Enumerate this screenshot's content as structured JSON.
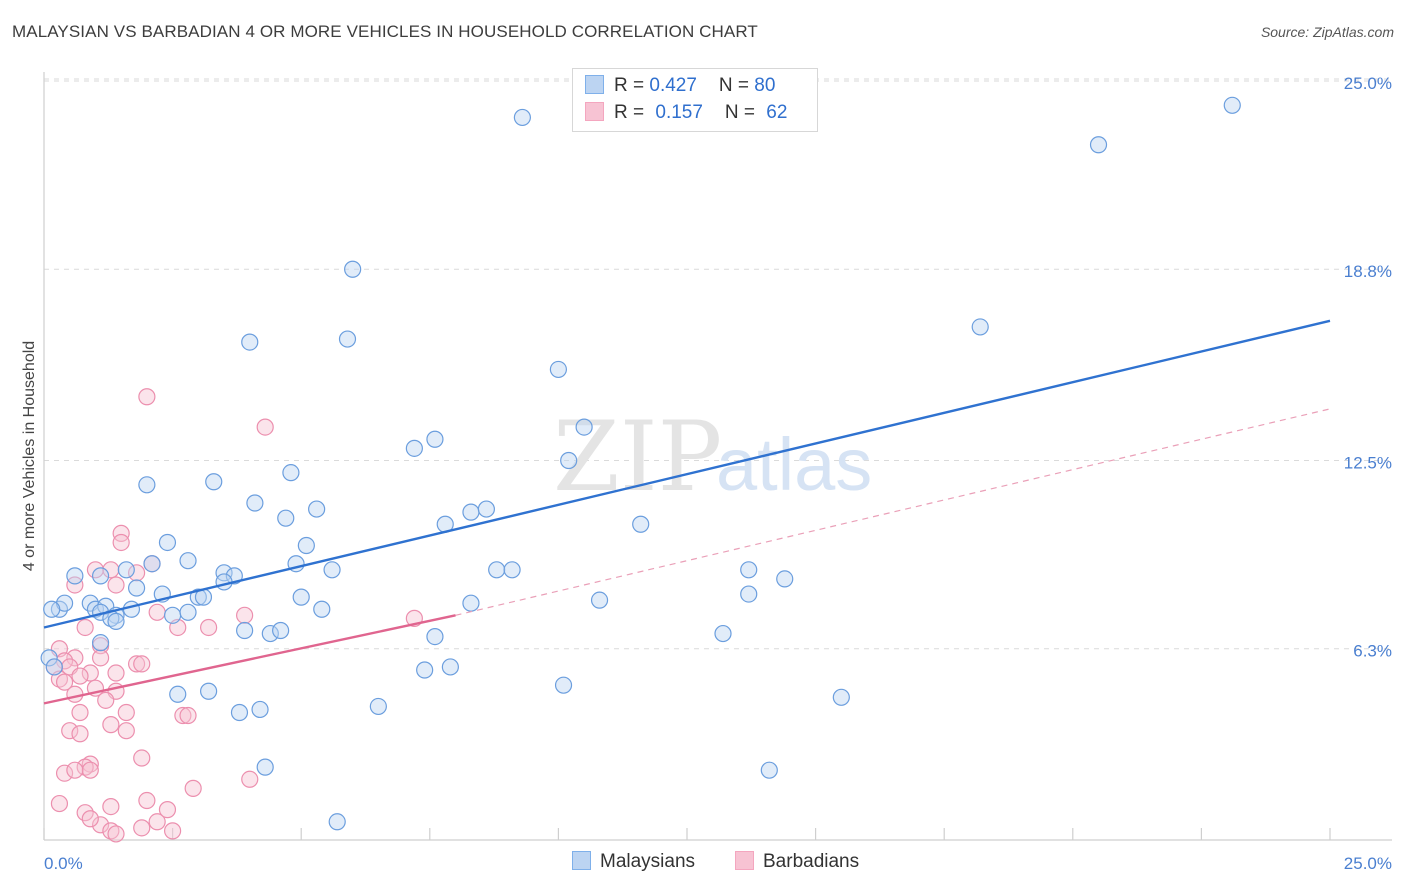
{
  "title": "MALAYSIAN VS BARBADIAN 4 OR MORE VEHICLES IN HOUSEHOLD CORRELATION CHART",
  "source": "Source: ZipAtlas.com",
  "watermark": {
    "zip": "ZIP",
    "atlas": "atlas"
  },
  "legend": {
    "rows": [
      {
        "r_label": "R = ",
        "r_value": "0.427",
        "n_label": "N = ",
        "n_value": "80",
        "color": "#7fb0ea"
      },
      {
        "r_label": "R = ",
        "r_value": "0.157",
        "n_label": "N = ",
        "n_value": "62",
        "color": "#f4a6bf"
      }
    ]
  },
  "bottom_legend": {
    "series1": "Malaysians",
    "series2": "Barbadians"
  },
  "colors": {
    "blue": "#2f72d0",
    "blue_fill": "#bcd4f2",
    "pink": "#e0658f",
    "pink_fill": "#f7c3d3",
    "tick": "#4a7fd0"
  },
  "chart_data": {
    "type": "scatter",
    "title": "MALAYSIAN VS BARBADIAN 4 OR MORE VEHICLES IN HOUSEHOLD CORRELATION CHART",
    "xlabel": "",
    "ylabel": "4 or more Vehicles in Household",
    "xlim": [
      0,
      25
    ],
    "ylim": [
      0,
      25
    ],
    "x_tick_labels": [
      "0.0%",
      "25.0%"
    ],
    "y_tick_labels": [
      "6.3%",
      "12.5%",
      "18.8%",
      "25.0%"
    ],
    "y_ticks": [
      6.3,
      12.5,
      18.8,
      25.0
    ],
    "series": [
      {
        "name": "Malaysians",
        "r": 0.427,
        "n": 80,
        "trend": {
          "x": [
            0,
            25
          ],
          "y": [
            7.0,
            17.1
          ],
          "style": "solid"
        },
        "points": [
          [
            9.3,
            23.8
          ],
          [
            23.1,
            24.2
          ],
          [
            20.5,
            22.9
          ],
          [
            6.0,
            18.8
          ],
          [
            18.2,
            16.9
          ],
          [
            4.0,
            16.4
          ],
          [
            5.9,
            16.5
          ],
          [
            10.0,
            15.5
          ],
          [
            10.5,
            13.6
          ],
          [
            7.2,
            12.9
          ],
          [
            7.6,
            13.2
          ],
          [
            10.2,
            12.5
          ],
          [
            4.8,
            12.1
          ],
          [
            3.3,
            11.8
          ],
          [
            2.0,
            11.7
          ],
          [
            4.1,
            11.1
          ],
          [
            4.7,
            10.6
          ],
          [
            5.3,
            10.9
          ],
          [
            8.3,
            10.8
          ],
          [
            8.6,
            10.9
          ],
          [
            7.8,
            10.4
          ],
          [
            11.6,
            10.4
          ],
          [
            2.4,
            9.8
          ],
          [
            5.1,
            9.7
          ],
          [
            1.6,
            8.9
          ],
          [
            2.1,
            9.1
          ],
          [
            2.8,
            9.2
          ],
          [
            4.9,
            9.1
          ],
          [
            5.6,
            8.9
          ],
          [
            3.5,
            8.8
          ],
          [
            8.8,
            8.9
          ],
          [
            9.1,
            8.9
          ],
          [
            13.7,
            8.9
          ],
          [
            1.1,
            8.7
          ],
          [
            3.7,
            8.7
          ],
          [
            14.4,
            8.6
          ],
          [
            3.5,
            8.5
          ],
          [
            0.6,
            8.7
          ],
          [
            1.8,
            8.3
          ],
          [
            2.3,
            8.1
          ],
          [
            3.0,
            8.0
          ],
          [
            3.1,
            8.0
          ],
          [
            5.0,
            8.0
          ],
          [
            8.3,
            7.8
          ],
          [
            10.8,
            7.9
          ],
          [
            13.7,
            8.1
          ],
          [
            0.9,
            7.8
          ],
          [
            1.0,
            7.6
          ],
          [
            1.2,
            7.7
          ],
          [
            1.7,
            7.6
          ],
          [
            1.4,
            7.4
          ],
          [
            2.5,
            7.4
          ],
          [
            2.8,
            7.5
          ],
          [
            5.4,
            7.6
          ],
          [
            0.3,
            7.6
          ],
          [
            0.4,
            7.8
          ],
          [
            1.1,
            7.5
          ],
          [
            1.3,
            7.3
          ],
          [
            1.4,
            7.2
          ],
          [
            3.9,
            6.9
          ],
          [
            4.4,
            6.8
          ],
          [
            4.6,
            6.9
          ],
          [
            7.6,
            6.7
          ],
          [
            13.2,
            6.8
          ],
          [
            1.1,
            6.5
          ],
          [
            7.4,
            5.6
          ],
          [
            7.9,
            5.7
          ],
          [
            10.1,
            5.1
          ],
          [
            15.5,
            4.7
          ],
          [
            2.6,
            4.8
          ],
          [
            3.2,
            4.9
          ],
          [
            3.8,
            4.2
          ],
          [
            4.2,
            4.3
          ],
          [
            6.5,
            4.4
          ],
          [
            4.3,
            2.4
          ],
          [
            14.1,
            2.3
          ],
          [
            5.7,
            0.6
          ],
          [
            0.1,
            6.0
          ],
          [
            0.2,
            5.7
          ],
          [
            0.15,
            7.6
          ]
        ]
      },
      {
        "name": "Barbadians",
        "r": 0.157,
        "n": 62,
        "trend": {
          "x": [
            0,
            8.0
          ],
          "y": [
            4.5,
            7.4
          ],
          "dashed_extension": {
            "x": [
              8.0,
              25
            ],
            "y": [
              7.4,
              14.2
            ]
          },
          "style": "solid"
        },
        "points": [
          [
            2.0,
            14.6
          ],
          [
            4.3,
            13.6
          ],
          [
            1.5,
            10.1
          ],
          [
            1.5,
            9.8
          ],
          [
            2.1,
            9.1
          ],
          [
            1.0,
            8.9
          ],
          [
            1.3,
            8.9
          ],
          [
            1.8,
            8.8
          ],
          [
            1.4,
            8.4
          ],
          [
            0.6,
            8.4
          ],
          [
            2.2,
            7.5
          ],
          [
            3.9,
            7.4
          ],
          [
            7.2,
            7.3
          ],
          [
            0.8,
            7.0
          ],
          [
            2.6,
            7.0
          ],
          [
            3.2,
            7.0
          ],
          [
            1.1,
            6.4
          ],
          [
            0.3,
            6.3
          ],
          [
            1.1,
            6.0
          ],
          [
            0.6,
            6.0
          ],
          [
            0.4,
            5.9
          ],
          [
            0.5,
            5.7
          ],
          [
            0.2,
            5.7
          ],
          [
            1.4,
            5.5
          ],
          [
            1.8,
            5.8
          ],
          [
            1.9,
            5.8
          ],
          [
            0.9,
            5.5
          ],
          [
            0.7,
            5.4
          ],
          [
            0.3,
            5.3
          ],
          [
            0.4,
            5.2
          ],
          [
            1.0,
            5.0
          ],
          [
            1.4,
            4.9
          ],
          [
            0.6,
            4.8
          ],
          [
            1.2,
            4.6
          ],
          [
            2.7,
            4.1
          ],
          [
            2.8,
            4.1
          ],
          [
            1.6,
            4.2
          ],
          [
            0.7,
            4.2
          ],
          [
            1.3,
            3.8
          ],
          [
            1.6,
            3.6
          ],
          [
            0.5,
            3.6
          ],
          [
            0.7,
            3.5
          ],
          [
            1.9,
            2.7
          ],
          [
            0.9,
            2.5
          ],
          [
            0.8,
            2.4
          ],
          [
            0.9,
            2.3
          ],
          [
            0.4,
            2.2
          ],
          [
            2.9,
            1.7
          ],
          [
            0.6,
            2.3
          ],
          [
            4.0,
            2.0
          ],
          [
            0.3,
            1.2
          ],
          [
            1.3,
            1.1
          ],
          [
            2.0,
            1.3
          ],
          [
            0.8,
            0.9
          ],
          [
            1.1,
            0.5
          ],
          [
            1.3,
            0.3
          ],
          [
            1.9,
            0.4
          ],
          [
            2.2,
            0.6
          ],
          [
            1.4,
            0.2
          ],
          [
            2.5,
            0.3
          ],
          [
            0.9,
            0.7
          ],
          [
            2.4,
            1.0
          ]
        ]
      }
    ]
  }
}
